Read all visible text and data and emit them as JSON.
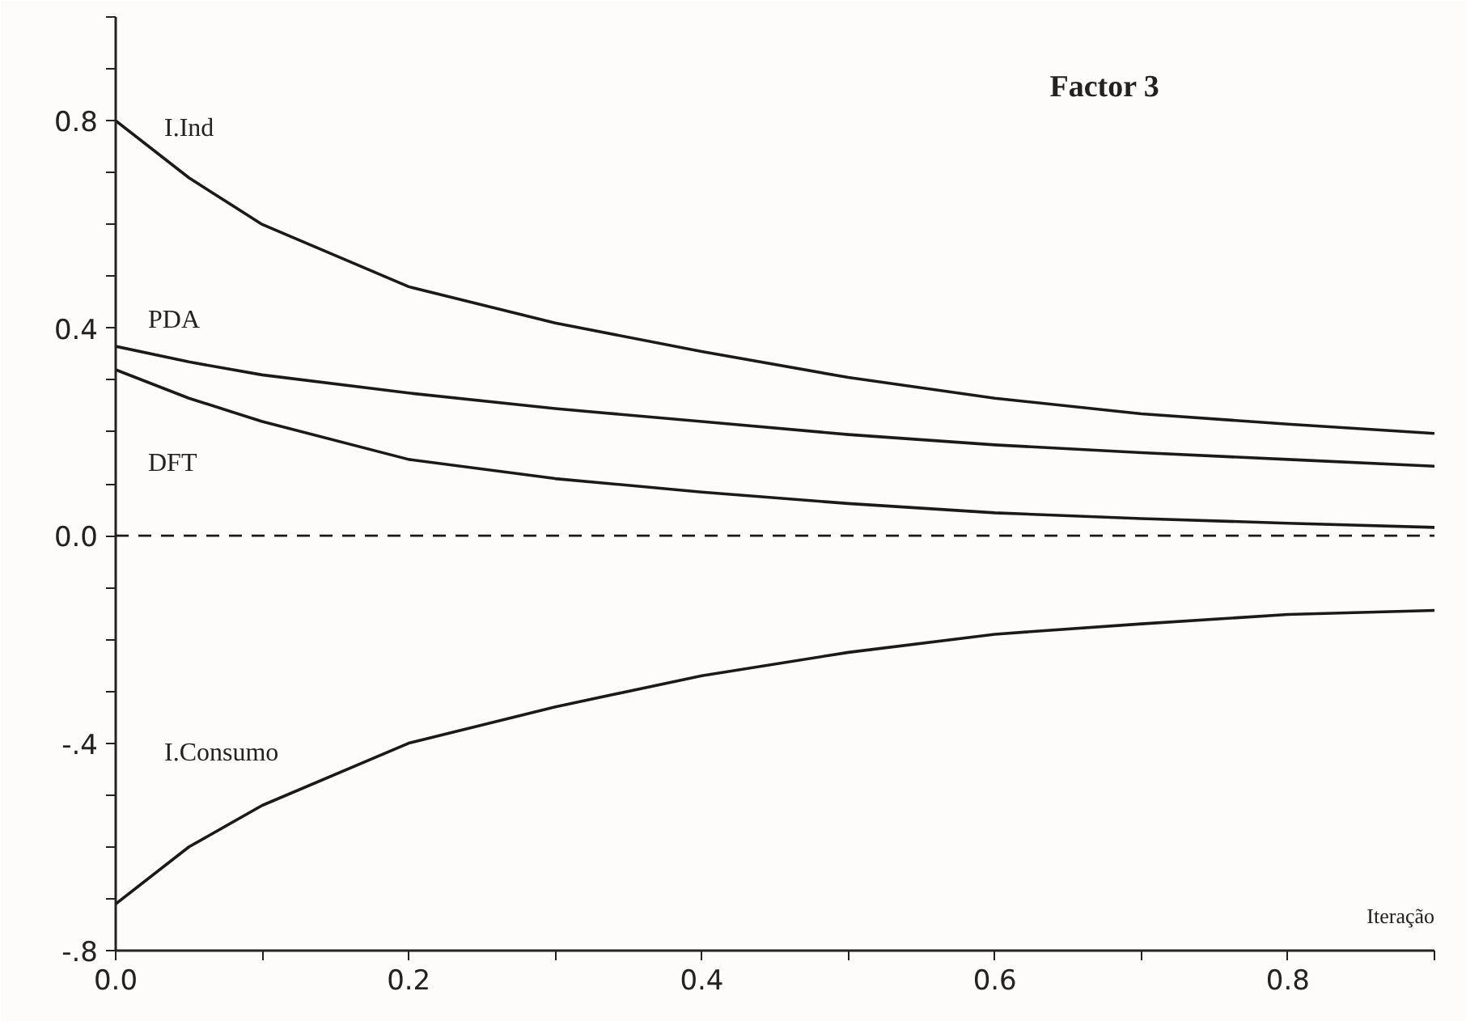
{
  "chart_data": {
    "type": "line",
    "title": "Factor 3",
    "xlabel": "Iteração",
    "x": [
      0,
      0.05,
      0.1,
      0.2,
      0.3,
      0.4,
      0.5,
      0.6,
      0.7,
      0.8,
      0.9
    ],
    "series": [
      {
        "name": "I.Ind",
        "color": "#1a1a1a",
        "values": [
          0.8,
          0.69,
          0.6,
          0.48,
          0.41,
          0.355,
          0.305,
          0.265,
          0.235,
          0.215,
          0.197
        ]
      },
      {
        "name": "PDA",
        "color": "#1a1a1a",
        "values": [
          0.365,
          0.335,
          0.31,
          0.275,
          0.245,
          0.22,
          0.195,
          0.175,
          0.16,
          0.147,
          0.134
        ]
      },
      {
        "name": "DFT",
        "color": "#1a1a1a",
        "values": [
          0.32,
          0.265,
          0.22,
          0.147,
          0.11,
          0.084,
          0.062,
          0.044,
          0.033,
          0.024,
          0.016
        ]
      },
      {
        "name": "I.Consumo",
        "color": "#1a1a1a",
        "values": [
          -0.71,
          -0.6,
          -0.52,
          -0.4,
          -0.33,
          -0.27,
          -0.225,
          -0.19,
          -0.17,
          -0.152,
          -0.144
        ]
      }
    ],
    "xlim": [
      0,
      0.9
    ],
    "ylim": [
      -0.8,
      1.0
    ],
    "xticks": [
      {
        "value": 0,
        "label": "0.0"
      },
      {
        "value": 0.1,
        "label": null
      },
      0.2,
      {
        "value": 0.3,
        "label": null
      },
      0.4,
      {
        "value": 0.5,
        "label": null
      },
      0.6,
      {
        "value": 0.7,
        "label": null
      },
      0.8,
      {
        "value": 0.9,
        "label": null
      }
    ],
    "yticks": [
      {
        "value": -0.8,
        "label": "-.8"
      },
      {
        "value": -0.7,
        "label": null
      },
      {
        "value": -0.6,
        "label": null
      },
      {
        "value": -0.5,
        "label": null
      },
      {
        "value": -0.4,
        "label": "-.4"
      },
      {
        "value": -0.3,
        "label": null
      },
      {
        "value": -0.2,
        "label": null
      },
      {
        "value": -0.1,
        "label": null
      },
      {
        "value": 0,
        "label": "0.0"
      },
      {
        "value": 0.1,
        "label": null
      },
      {
        "value": 0.2,
        "label": null
      },
      {
        "value": 0.3,
        "label": null
      },
      0.4,
      {
        "value": 0.5,
        "label": null
      },
      {
        "value": 0.6,
        "label": null
      },
      {
        "value": 0.7,
        "label": null
      },
      0.8,
      {
        "value": 0.9,
        "label": null
      },
      {
        "value": 1.0,
        "label": null
      }
    ],
    "ref_lines": [
      {
        "axis": "y",
        "value": 0,
        "label": null,
        "line_style": "dashed",
        "color": "#1a1a1a"
      }
    ],
    "grid": false,
    "marker": "none",
    "line_style": "solid"
  }
}
